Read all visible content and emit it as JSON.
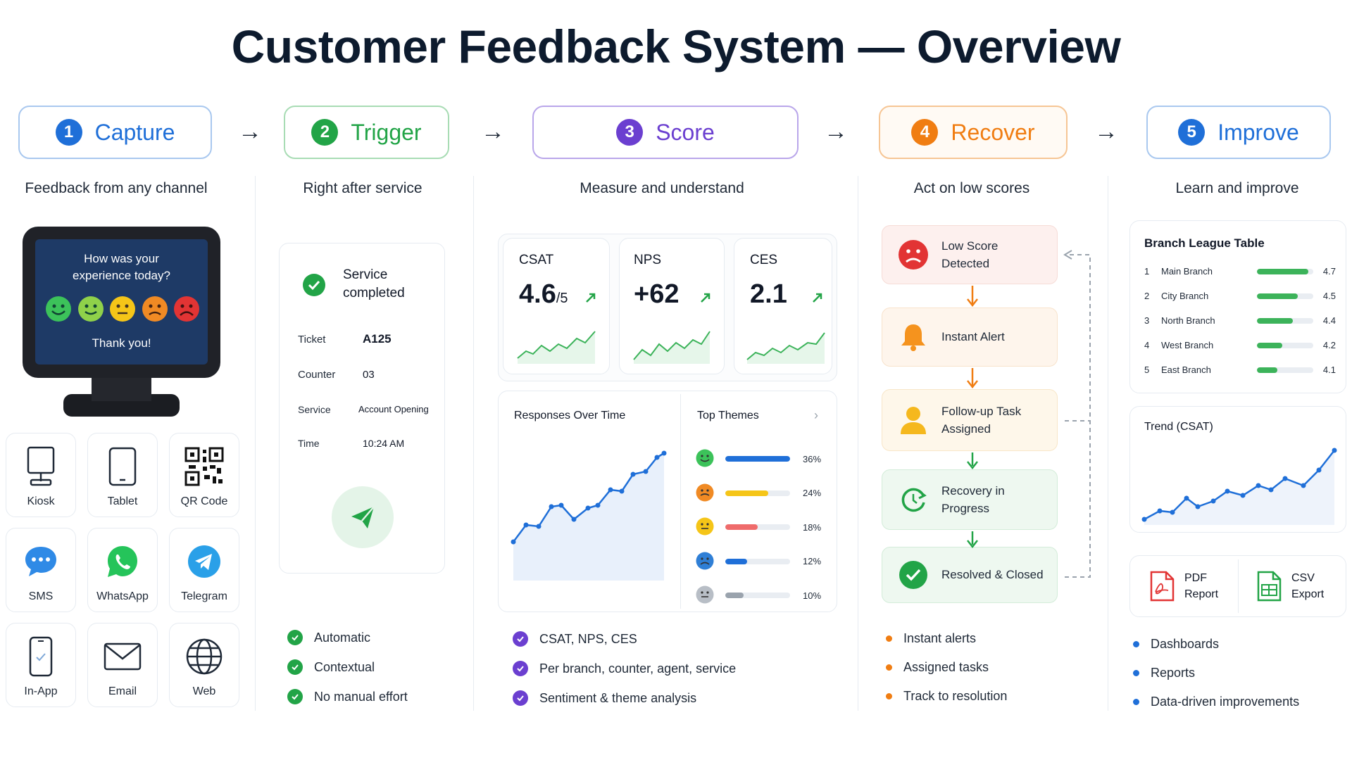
{
  "title": "Customer Feedback System — Overview",
  "stages": [
    {
      "num": "1",
      "label": "Capture",
      "subtitle": "Feedback from any channel",
      "color": "#1f6fd8",
      "border": "#a9c8ef"
    },
    {
      "num": "2",
      "label": "Trigger",
      "subtitle": "Right after service",
      "color": "#22a447",
      "border": "#a8dcb4"
    },
    {
      "num": "3",
      "label": "Score",
      "subtitle": "Measure and understand",
      "color": "#6b3fd0",
      "border": "#b9a6ea"
    },
    {
      "num": "4",
      "label": "Recover",
      "subtitle": "Act on low scores",
      "color": "#f07d12",
      "border": "#f6c594"
    },
    {
      "num": "5",
      "label": "Improve",
      "subtitle": "Learn and improve",
      "color": "#1f6fd8",
      "border": "#a9c8ef"
    }
  ],
  "arrow_glyph": "→",
  "capture": {
    "kiosk": {
      "question": "How was your experience today?",
      "thanks": "Thank you!"
    },
    "channels": [
      {
        "name": "Kiosk",
        "icon": "kiosk-icon"
      },
      {
        "name": "Tablet",
        "icon": "tablet-icon"
      },
      {
        "name": "QR Code",
        "icon": "qr-code-icon"
      },
      {
        "name": "SMS",
        "icon": "sms-icon"
      },
      {
        "name": "WhatsApp",
        "icon": "whatsapp-icon"
      },
      {
        "name": "Telegram",
        "icon": "telegram-icon"
      },
      {
        "name": "In-App",
        "icon": "in-app-icon"
      },
      {
        "name": "Email",
        "icon": "email-icon"
      },
      {
        "name": "Web",
        "icon": "web-icon"
      }
    ]
  },
  "trigger": {
    "status": "Service completed",
    "rows": [
      {
        "label": "Ticket",
        "value": "A125"
      },
      {
        "label": "Counter",
        "value": "03"
      },
      {
        "label": "Service",
        "value": "Account Opening"
      },
      {
        "label": "Time",
        "value": "10:24 AM"
      }
    ],
    "bullets": [
      "Automatic",
      "Contextual",
      "No manual effort"
    ]
  },
  "score": {
    "kpis": [
      {
        "label": "CSAT",
        "value": "4.6",
        "unit": "/5"
      },
      {
        "label": "NPS",
        "value": "+62",
        "unit": ""
      },
      {
        "label": "CES",
        "value": "2.1",
        "unit": ""
      }
    ],
    "responses_title": "Responses Over Time",
    "themes_title": "Top Themes",
    "themes": [
      {
        "pct": "36%",
        "value": 36,
        "bar_color": "#1f6fd8",
        "face_color": "#3cc25a"
      },
      {
        "pct": "24%",
        "value": 24,
        "bar_color": "#f5c518",
        "face_color": "#f08a24"
      },
      {
        "pct": "18%",
        "value": 18,
        "bar_color": "#ef6b6b",
        "face_color": "#f5c518"
      },
      {
        "pct": "12%",
        "value": 12,
        "bar_color": "#1f6fd8",
        "face_color": "#2f7fd6"
      },
      {
        "pct": "10%",
        "value": 10,
        "bar_color": "#9aa3ad",
        "face_color": "#b8bec6"
      }
    ],
    "bullets": [
      "CSAT, NPS, CES",
      "Per branch, counter, agent, service",
      "Sentiment & theme analysis"
    ]
  },
  "recover": {
    "steps": [
      {
        "label": "Low Score Detected",
        "icon": "sad-face-icon"
      },
      {
        "label": "Instant Alert",
        "icon": "bell-icon"
      },
      {
        "label": "Follow-up Task Assigned",
        "icon": "person-icon"
      },
      {
        "label": "Recovery in Progress",
        "icon": "refresh-icon"
      },
      {
        "label": "Resolved & Closed",
        "icon": "check-circle-icon"
      }
    ],
    "bullets": [
      "Instant alerts",
      "Assigned tasks",
      "Track to resolution"
    ]
  },
  "improve": {
    "league_title": "Branch League Table",
    "league": [
      {
        "rank": "1",
        "name": "Main Branch",
        "score": "4.7",
        "value": 4.7
      },
      {
        "rank": "2",
        "name": "City Branch",
        "score": "4.5",
        "value": 4.5
      },
      {
        "rank": "3",
        "name": "North Branch",
        "score": "4.4",
        "value": 4.4
      },
      {
        "rank": "4",
        "name": "West Branch",
        "score": "4.2",
        "value": 4.2
      },
      {
        "rank": "5",
        "name": "East Branch",
        "score": "4.1",
        "value": 4.1
      }
    ],
    "trend_title": "Trend (CSAT)",
    "exports": [
      {
        "line1": "PDF",
        "line2": "Report",
        "icon": "pdf-icon"
      },
      {
        "line1": "CSV",
        "line2": "Export",
        "icon": "csv-icon"
      }
    ],
    "bullets": [
      "Dashboards",
      "Reports",
      "Data-driven improvements"
    ]
  }
}
